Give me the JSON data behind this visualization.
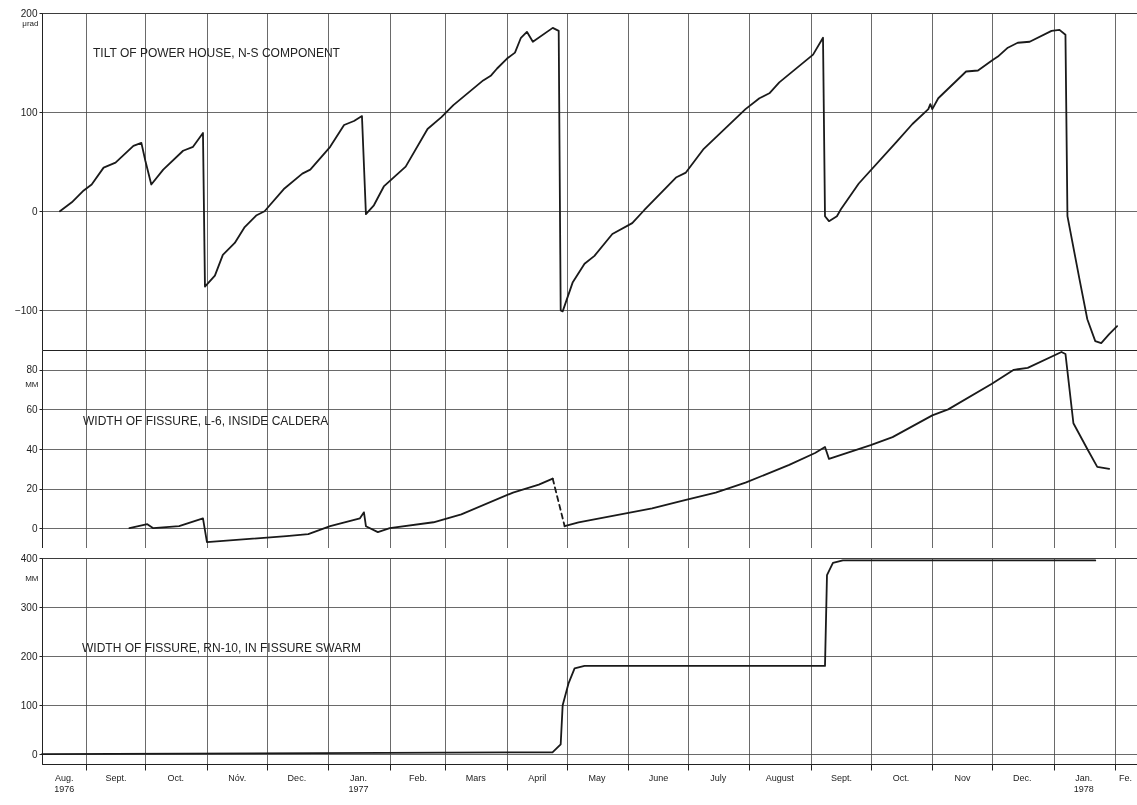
{
  "chart_data": [
    {
      "type": "line",
      "title": "TILT OF POWER HOUSE, N-S COMPONENT",
      "ylabel": "μrad",
      "xlim": [
        "1976-08-10",
        "1978-02-12"
      ],
      "ylim": [
        -140,
        200
      ],
      "yticks": [
        -100,
        0,
        100,
        200
      ],
      "grid": true,
      "tick_labels": "y",
      "xticks": [
        {
          "value": "1976-09-01",
          "label": null
        },
        {
          "value": "1976-10-01",
          "label": null
        },
        {
          "value": "1976-11-01",
          "label": null
        },
        {
          "value": "1976-12-01",
          "label": null
        },
        {
          "value": "1977-01-01",
          "label": null
        },
        {
          "value": "1977-02-01",
          "label": null
        },
        {
          "value": "1977-03-01",
          "label": null
        },
        {
          "value": "1977-04-01",
          "label": null
        },
        {
          "value": "1977-05-01",
          "label": null
        },
        {
          "value": "1977-06-01",
          "label": null
        },
        {
          "value": "1977-07-01",
          "label": null
        },
        {
          "value": "1977-08-01",
          "label": null
        },
        {
          "value": "1977-09-01",
          "label": null
        },
        {
          "value": "1977-10-01",
          "label": null
        },
        {
          "value": "1977-11-01",
          "label": null
        },
        {
          "value": "1977-12-01",
          "label": null
        },
        {
          "value": "1978-01-01",
          "label": null
        },
        {
          "value": "1978-02-01",
          "label": null
        }
      ],
      "series": [
        {
          "color": "#1a1a1a",
          "x": [
            "1976-08-19",
            "1976-08-25",
            "1976-08-31",
            "1976-09-04",
            "1976-09-10",
            "1976-09-16",
            "1976-09-25",
            "1976-09-29",
            "1976-10-01",
            "1976-10-04",
            "1976-10-10",
            "1976-10-20",
            "1976-10-25",
            "1976-10-30",
            "1976-10-31",
            "1976-11-05",
            "1976-11-09",
            "1976-11-15",
            "1976-11-20",
            "1976-11-26",
            "1976-11-30",
            "1976-12-10",
            "1976-12-19",
            "1976-12-23",
            "1977-01-02",
            "1977-01-09",
            "1977-01-14",
            "1977-01-18",
            "1977-01-20",
            "1977-01-24",
            "1977-01-29",
            "1977-02-09",
            "1977-02-20",
            "1977-02-27",
            "1977-03-05",
            "1977-03-20",
            "1977-03-24",
            "1977-03-27",
            "1977-04-01",
            "1977-04-05",
            "1977-04-08",
            "1977-04-11",
            "1977-04-14",
            "1977-04-24",
            "1977-04-27",
            "1977-04-28",
            "1977-04-29",
            "1977-05-04",
            "1977-05-10",
            "1977-05-15",
            "1977-05-24",
            "1977-06-03",
            "1977-06-09",
            "1977-06-25",
            "1977-06-30",
            "1977-07-09",
            "1977-07-30",
            "1977-08-06",
            "1977-08-11",
            "1977-08-16",
            "1977-09-02",
            "1977-09-07",
            "1977-09-08",
            "1977-09-10",
            "1977-09-14",
            "1977-09-16",
            "1977-09-25",
            "1977-10-14",
            "1977-10-22",
            "1977-10-30",
            "1977-10-31",
            "1977-11-01",
            "1977-11-04",
            "1977-11-18",
            "1977-11-24",
            "1977-12-01",
            "1977-12-04",
            "1977-12-09",
            "1977-12-14",
            "1977-12-20",
            "1977-12-31",
            "1978-01-04",
            "1978-01-07",
            "1978-01-08",
            "1978-01-14",
            "1978-01-18",
            "1978-01-22",
            "1978-01-25",
            "1978-01-29",
            "1978-02-02"
          ],
          "values": [
            0,
            9,
            21,
            27,
            44,
            49,
            66,
            69,
            51,
            27,
            42,
            61,
            65,
            79,
            -76,
            -65,
            -44,
            -32,
            -16,
            -4,
            0,
            23,
            38,
            42,
            65,
            87,
            91,
            96,
            -3,
            6,
            25,
            45,
            83,
            95,
            107,
            132,
            137,
            144,
            154,
            160,
            175,
            181,
            171,
            185,
            182,
            -100,
            -101,
            -72,
            -53,
            -45,
            -23,
            -12,
            1,
            34,
            39,
            63,
            103,
            114,
            119,
            130,
            158,
            175,
            -5,
            -10,
            -5,
            2,
            28,
            70,
            88,
            103,
            108,
            103,
            114,
            141,
            142,
            152,
            156,
            165,
            170,
            171,
            182,
            183,
            178,
            -5,
            -68,
            -109,
            -131,
            -133,
            -124,
            -116
          ]
        }
      ]
    },
    {
      "type": "line",
      "title": "WIDTH OF FISSURE, L-6, INSIDE CALDERA",
      "ylabel": "MM",
      "xlim": [
        "1976-08-10",
        "1978-02-12"
      ],
      "ylim": [
        -10,
        90
      ],
      "yticks": [
        0,
        20,
        40,
        60,
        80
      ],
      "grid": true,
      "tick_labels": "y",
      "xticks": [
        {
          "value": "1976-09-01",
          "label": null
        },
        {
          "value": "1976-10-01",
          "label": null
        },
        {
          "value": "1976-11-01",
          "label": null
        },
        {
          "value": "1976-12-01",
          "label": null
        },
        {
          "value": "1977-01-01",
          "label": null
        },
        {
          "value": "1977-02-01",
          "label": null
        },
        {
          "value": "1977-03-01",
          "label": null
        },
        {
          "value": "1977-04-01",
          "label": null
        },
        {
          "value": "1977-05-01",
          "label": null
        },
        {
          "value": "1977-06-01",
          "label": null
        },
        {
          "value": "1977-07-01",
          "label": null
        },
        {
          "value": "1977-08-01",
          "label": null
        },
        {
          "value": "1977-09-01",
          "label": null
        },
        {
          "value": "1977-10-01",
          "label": null
        },
        {
          "value": "1977-11-01",
          "label": null
        },
        {
          "value": "1977-12-01",
          "label": null
        },
        {
          "value": "1978-01-01",
          "label": null
        },
        {
          "value": "1978-02-01",
          "label": null
        }
      ],
      "series": [
        {
          "color": "#1a1a1a",
          "line_style": "solid",
          "x": [
            "1976-09-23",
            "1976-10-02",
            "1976-10-05",
            "1976-10-18",
            "1976-10-30",
            "1976-11-01",
            "1976-12-11",
            "1976-12-22",
            "1977-01-02",
            "1977-01-17",
            "1977-01-19",
            "1977-01-20",
            "1977-01-26",
            "1977-02-01",
            "1977-02-23",
            "1977-03-09",
            "1977-04-04",
            "1977-04-17",
            "1977-04-24"
          ],
          "values": [
            0,
            2,
            0,
            1,
            5,
            -7,
            -4,
            -3,
            1,
            5,
            8,
            1,
            -2,
            0,
            3,
            7,
            18,
            22,
            25
          ]
        },
        {
          "color": "#1a1a1a",
          "line_style": "dashed",
          "x": [
            "1977-04-24",
            "1977-04-30"
          ],
          "values": [
            25,
            1
          ]
        },
        {
          "color": "#1a1a1a",
          "line_style": "solid",
          "x": [
            "1977-04-30",
            "1977-05-07",
            "1977-06-13",
            "1977-06-29",
            "1977-07-15",
            "1977-07-30",
            "1977-08-21",
            "1977-09-03",
            "1977-09-08",
            "1977-09-10",
            "1977-10-01",
            "1977-10-12",
            "1977-11-01",
            "1977-11-09",
            "1977-12-01",
            "1977-12-12",
            "1977-12-19",
            "1978-01-05",
            "1978-01-07",
            "1978-01-11",
            "1978-01-18",
            "1978-01-23",
            "1978-01-29"
          ],
          "values": [
            1,
            3,
            10,
            14,
            18,
            23,
            32,
            38,
            41,
            35,
            42,
            46,
            57,
            60,
            73,
            80,
            81,
            89,
            88,
            53,
            40,
            31,
            30
          ]
        }
      ]
    },
    {
      "type": "line",
      "title": "WIDTH OF FISSURE, RN-10, IN FISSURE SWARM",
      "ylabel": "MM",
      "xlim": [
        "1976-08-10",
        "1978-02-12"
      ],
      "ylim": [
        -20,
        400
      ],
      "yticks": [
        0,
        100,
        200,
        300,
        400
      ],
      "grid": true,
      "xticks": [
        {
          "value": "1976-08-21",
          "label": "Aug.\n1976"
        },
        {
          "value": "1976-09-01",
          "label": null
        },
        {
          "value": "1976-09-16",
          "label": "Sept."
        },
        {
          "value": "1976-10-01",
          "label": null
        },
        {
          "value": "1976-10-16",
          "label": "Oct."
        },
        {
          "value": "1976-11-01",
          "label": null
        },
        {
          "value": "1976-11-16",
          "label": "Nóv."
        },
        {
          "value": "1976-12-01",
          "label": null
        },
        {
          "value": "1976-12-16",
          "label": "Dec."
        },
        {
          "value": "1977-01-01",
          "label": null
        },
        {
          "value": "1977-01-16",
          "label": "Jan.\n1977"
        },
        {
          "value": "1977-02-01",
          "label": null
        },
        {
          "value": "1977-02-15",
          "label": "Feb."
        },
        {
          "value": "1977-03-01",
          "label": null
        },
        {
          "value": "1977-03-16",
          "label": "Mars"
        },
        {
          "value": "1977-04-01",
          "label": null
        },
        {
          "value": "1977-04-16",
          "label": "April"
        },
        {
          "value": "1977-05-01",
          "label": null
        },
        {
          "value": "1977-05-16",
          "label": "May"
        },
        {
          "value": "1977-06-01",
          "label": null
        },
        {
          "value": "1977-06-16",
          "label": "June"
        },
        {
          "value": "1977-07-01",
          "label": null
        },
        {
          "value": "1977-07-16",
          "label": "July"
        },
        {
          "value": "1977-08-01",
          "label": null
        },
        {
          "value": "1977-08-16",
          "label": "August"
        },
        {
          "value": "1977-09-01",
          "label": null
        },
        {
          "value": "1977-09-16",
          "label": "Sept."
        },
        {
          "value": "1977-10-01",
          "label": null
        },
        {
          "value": "1977-10-16",
          "label": "Oct."
        },
        {
          "value": "1977-11-01",
          "label": null
        },
        {
          "value": "1977-11-16",
          "label": "Nov"
        },
        {
          "value": "1977-12-01",
          "label": null
        },
        {
          "value": "1977-12-16",
          "label": "Dec."
        },
        {
          "value": "1978-01-01",
          "label": null
        },
        {
          "value": "1978-01-16",
          "label": "Jan.\n1978"
        },
        {
          "value": "1978-02-01",
          "label": null
        },
        {
          "value": "1978-02-06",
          "label": "Fe."
        }
      ],
      "series": [
        {
          "color": "#1a1a1a",
          "x": [
            "1976-08-10",
            "1977-04-24",
            "1977-04-28",
            "1977-04-29",
            "1977-05-02",
            "1977-05-05",
            "1977-05-10",
            "1977-09-08",
            "1977-09-09",
            "1977-09-12",
            "1977-09-17",
            "1978-01-22"
          ],
          "values": [
            0,
            4,
            20,
            100,
            145,
            175,
            180,
            180,
            365,
            390,
            395,
            395
          ]
        }
      ]
    }
  ]
}
